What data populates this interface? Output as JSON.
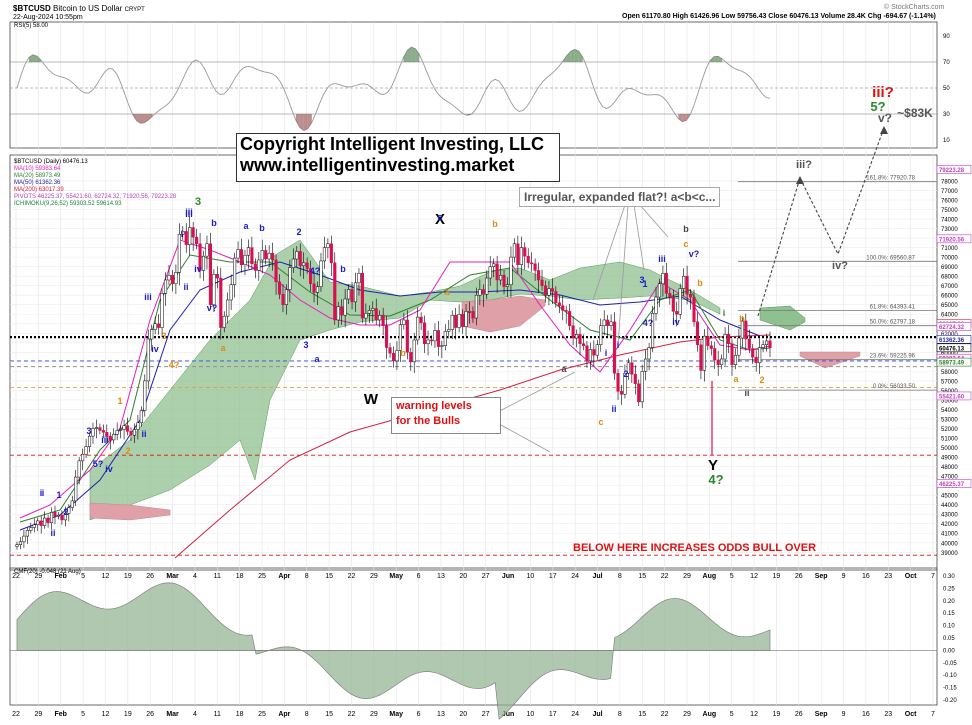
{
  "header": {
    "symbol": "$BTCUSD",
    "name": "Bitcoin to US Dollar",
    "exchange": "CRYPT",
    "date": "22-Aug-2024 10:55pm",
    "ohlc": "Open 61170.80  High 61426.96  Low 59756.43  Close 60476.13  Volume 28.4K  Chg -694.67 (-1.14%)",
    "watermark": "© StockCharts.com"
  },
  "rsi_label": "RSI(5) 58.00",
  "cmf_label": "CMF(20) -0.048 (21 Aug)",
  "price_legend": [
    {
      "text": "$BTCUSD (Daily) 60476.13",
      "color": "#000000"
    },
    {
      "text": "MA(10) 59383.64",
      "color": "#e020c0"
    },
    {
      "text": "MA(20) 58973.49",
      "color": "#2f7f2f"
    },
    {
      "text": "MA(50) 61362.36",
      "color": "#2020b0"
    },
    {
      "text": "MA(200) 63017.39",
      "color": "#d02040"
    },
    {
      "text": "PIVOTS 46225.37, 55421.60, 62724.32, 71920.56, 79223.28",
      "color": "#b040c0"
    },
    {
      "text": "ICHIMOKU(9,26,52) 59303.52 59614.93",
      "color": "#208040"
    }
  ],
  "copyright": {
    "line1": "Copyright Intelligent Investing, LLC",
    "line2": "www.intelligentinvesting.market"
  },
  "callouts": {
    "flat": "Irregular, expanded flat?! a<b<c...",
    "warning1": "warning levels",
    "warning2": "for the Bulls",
    "below": "BELOW HERE INCREASES ODDS BULL OVER"
  },
  "colors": {
    "bull_cloud": "#8fc08f",
    "bear_cloud": "#e0a0a8",
    "wave_green": "#2a8a2a",
    "wave_orange": "#e08a10",
    "wave_blue": "#1a1acc",
    "wave_red": "#dd1010"
  },
  "chart_data": {
    "type": "candlestick",
    "x_ticks": [
      "22",
      "29",
      "Feb",
      "5",
      "12",
      "19",
      "26",
      "Mar",
      "4",
      "11",
      "18",
      "25",
      "Apr",
      "8",
      "15",
      "22",
      "29",
      "May",
      "6",
      "13",
      "20",
      "27",
      "Jun",
      "10",
      "17",
      "24",
      "Jul",
      "8",
      "15",
      "22",
      "29",
      "Aug",
      "5",
      "12",
      "19",
      "26",
      "Sep",
      "9",
      "16",
      "23",
      "Oct",
      "7"
    ],
    "y_ticks": [
      39000,
      40000,
      41000,
      42000,
      43000,
      44000,
      45000,
      46000,
      47000,
      48000,
      49000,
      50000,
      51000,
      52000,
      53000,
      54000,
      55000,
      56000,
      57000,
      58000,
      59000,
      60000,
      61000,
      62000,
      63000,
      64000,
      65000,
      66000,
      67000,
      68000,
      69000,
      70000,
      71000,
      72000,
      73000,
      74000,
      75000,
      76000,
      77000,
      78000
    ],
    "ylim": [
      38400,
      80200
    ],
    "right_axis_labels": [
      {
        "text": "79223.28",
        "value": 79223.28,
        "color": "#c040c0"
      },
      {
        "text": "71920.56",
        "value": 71920.56,
        "color": "#c040c0"
      },
      {
        "text": "63017.39",
        "value": 63017.39,
        "color": "#d02040"
      },
      {
        "text": "62724.32",
        "value": 62724.32,
        "color": "#c040c0"
      },
      {
        "text": "61362.36",
        "value": 61362.36,
        "color": "#2020b0"
      },
      {
        "text": "60476.13",
        "value": 60476.13,
        "color": "#000000"
      },
      {
        "text": "59383.64",
        "value": 59383.64,
        "color": "#e020c0"
      },
      {
        "text": "58973.49",
        "value": 58973.49,
        "color": "#2f7f2f"
      },
      {
        "text": "55421.60",
        "value": 55421.6,
        "color": "#c040c0"
      },
      {
        "text": "46225.37",
        "value": 46225.37,
        "color": "#c040c0"
      }
    ],
    "fib_levels": [
      {
        "label": "161.8%: 77920.78",
        "value": 77920.78
      },
      {
        "label": "100.0%: 69560.87",
        "value": 69560.87
      },
      {
        "label": "61.8%: 64393.41",
        "value": 64393.41
      },
      {
        "label": "50.0%: 62797.18",
        "value": 62797.18
      },
      {
        "label": "23.6%: 59225.96",
        "value": 59225.96
      },
      {
        "label": "0.0%: 56033.50",
        "value": 56033.5
      }
    ],
    "hlines": [
      {
        "value": 61600,
        "style": "dotted",
        "color": "#000000"
      },
      {
        "value": 59100,
        "style": "dashed",
        "color": "#3050e0"
      },
      {
        "value": 58500,
        "style": "dashed",
        "color": "#909090"
      },
      {
        "value": 56300,
        "style": "dashed",
        "color": "#e0a040"
      },
      {
        "value": 49200,
        "style": "dashed",
        "color": "#dd1010"
      },
      {
        "value": 38700,
        "style": "dashed",
        "color": "#dd1010"
      }
    ],
    "closes": [
      39800,
      40100,
      40700,
      41300,
      41600,
      41900,
      42300,
      41800,
      42600,
      42100,
      43200,
      42800,
      42900,
      42400,
      43100,
      43700,
      44400,
      46900,
      48600,
      49300,
      50100,
      51200,
      52000,
      52100,
      51800,
      51600,
      51200,
      50800,
      51400,
      51800,
      51900,
      52300,
      51700,
      51300,
      51900,
      52600,
      53900,
      57000,
      61400,
      62400,
      63000,
      62600,
      66200,
      67600,
      68100,
      67200,
      68400,
      72400,
      72700,
      71300,
      73100,
      72100,
      71400,
      68600,
      70100,
      71400,
      65000,
      68200,
      67800,
      62600,
      63800,
      65500,
      67100,
      69900,
      70800,
      69200,
      70200,
      71000,
      69300,
      68600,
      69700,
      70700,
      69800,
      70400,
      69700,
      67400,
      66100,
      65000,
      66600,
      68900,
      69800,
      70600,
      69100,
      69400,
      68800,
      67200,
      66300,
      66900,
      69600,
      71000,
      71400,
      69400,
      63400,
      64800,
      63900,
      65600,
      66600,
      65300,
      67300,
      68300,
      63600,
      64100,
      64400,
      64600,
      63400,
      63900,
      62800,
      60500,
      59900,
      59100,
      60200,
      62900,
      63400,
      60000,
      59000,
      61300,
      63700,
      63100,
      60900,
      61300,
      61200,
      62300,
      60600,
      60700,
      62200,
      62400,
      63900,
      62600,
      64000,
      62700,
      64300,
      64300,
      63600,
      66000,
      66600,
      66100,
      67800,
      69000,
      69300,
      67600,
      68100,
      66900,
      67100,
      70000,
      71400,
      69200,
      71000,
      70100,
      69400,
      69300,
      68600,
      67600,
      67000,
      66000,
      66700,
      66400,
      65200,
      64900,
      64400,
      64300,
      62800,
      61500,
      61900,
      60900,
      60700,
      59100,
      60300,
      59700,
      60800,
      62800,
      63400,
      62800,
      63200,
      57800,
      55900,
      55600,
      57800,
      58900,
      57700,
      56700,
      54800,
      58000,
      59300,
      60500,
      64100,
      65800,
      67200,
      68300,
      66200,
      65800,
      64300,
      64000,
      66700,
      68000,
      66100,
      65800,
      63200,
      60800,
      58100,
      61700,
      60700,
      60400,
      59200,
      58700,
      59300,
      61900,
      60900,
      58700,
      59700,
      61500,
      63300,
      61400,
      60400,
      59500,
      58900,
      60500,
      60800,
      61200,
      60476
    ]
  },
  "rsi_axis": [
    "90",
    "70",
    "50",
    "30",
    "10"
  ],
  "cmf_axis": [
    "0.30",
    "0.25",
    "0.20",
    "0.15",
    "0.10",
    "0.05",
    "0.00",
    "-0.05",
    "-0.10",
    "-0.15",
    "-0.20"
  ],
  "labels": {
    "X": "X",
    "W": "W",
    "Y": "Y",
    "four": "4?",
    "three_top": "3",
    "iii_red": "iii?",
    "five": "5?",
    "v": "v?",
    "target": "~$83K",
    "iii_fc": "iii?",
    "iv_fc": "iv?",
    "a": "a",
    "b": "b",
    "c": "c",
    "i": "i",
    "ii": "ii",
    "iii": "iii",
    "iv": "iv",
    "v_": "v",
    "one": "1",
    "two": "2",
    "three": "3",
    "four_n": "4",
    "five_n": "5"
  }
}
